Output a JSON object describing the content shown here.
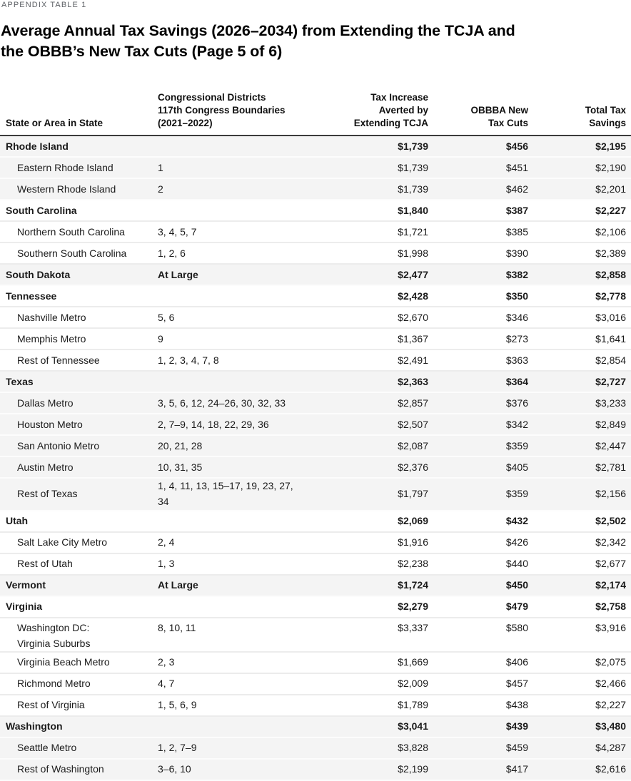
{
  "eyebrow": "APPENDIX TABLE 1",
  "title_line1": "Average Annual Tax Savings (2026–2034) from Extending the TCJA and",
  "title_line2": "the OBBB’s New Tax Cuts (Page 5 of 6)",
  "columns": [
    "State or Area in State",
    "Congressional Districts\n117th Congress Boundaries\n(2021–2022)",
    "Tax Increase\nAverted by\nExtending TCJA",
    "OBBBA New\nTax Cuts",
    "Total Tax\nSavings"
  ],
  "rows": [
    {
      "label": "Rhode Island",
      "districts": "",
      "tcja": "$1,739",
      "obbba": "$456",
      "total": "$2,195",
      "bold": true,
      "area": false,
      "shade": "g",
      "tall": false
    },
    {
      "label": "Eastern Rhode Island",
      "districts": "1",
      "tcja": "$1,739",
      "obbba": "$451",
      "total": "$2,190",
      "bold": false,
      "area": true,
      "shade": "g",
      "tall": false
    },
    {
      "label": "Western Rhode Island",
      "districts": "2",
      "tcja": "$1,739",
      "obbba": "$462",
      "total": "$2,201",
      "bold": false,
      "area": true,
      "shade": "g",
      "tall": false
    },
    {
      "label": "South Carolina",
      "districts": "",
      "tcja": "$1,840",
      "obbba": "$387",
      "total": "$2,227",
      "bold": true,
      "area": false,
      "shade": "w",
      "tall": false
    },
    {
      "label": "Northern South Carolina",
      "districts": "3, 4, 5, 7",
      "tcja": "$1,721",
      "obbba": "$385",
      "total": "$2,106",
      "bold": false,
      "area": true,
      "shade": "w",
      "tall": false
    },
    {
      "label": "Southern South Carolina",
      "districts": "1, 2, 6",
      "tcja": "$1,998",
      "obbba": "$390",
      "total": "$2,389",
      "bold": false,
      "area": true,
      "shade": "w",
      "tall": false
    },
    {
      "label": "South Dakota",
      "districts": "At Large",
      "tcja": "$2,477",
      "obbba": "$382",
      "total": "$2,858",
      "bold": true,
      "area": false,
      "shade": "g",
      "tall": false
    },
    {
      "label": "Tennessee",
      "districts": "",
      "tcja": "$2,428",
      "obbba": "$350",
      "total": "$2,778",
      "bold": true,
      "area": false,
      "shade": "w",
      "tall": false
    },
    {
      "label": "Nashville Metro",
      "districts": "5, 6",
      "tcja": "$2,670",
      "obbba": "$346",
      "total": "$3,016",
      "bold": false,
      "area": true,
      "shade": "w",
      "tall": false
    },
    {
      "label": "Memphis Metro",
      "districts": "9",
      "tcja": "$1,367",
      "obbba": "$273",
      "total": "$1,641",
      "bold": false,
      "area": true,
      "shade": "w",
      "tall": false
    },
    {
      "label": "Rest of Tennessee",
      "districts": "1, 2, 3, 4, 7, 8",
      "tcja": "$2,491",
      "obbba": "$363",
      "total": "$2,854",
      "bold": false,
      "area": true,
      "shade": "w",
      "tall": false
    },
    {
      "label": "Texas",
      "districts": "",
      "tcja": "$2,363",
      "obbba": "$364",
      "total": "$2,727",
      "bold": true,
      "area": false,
      "shade": "g",
      "tall": false
    },
    {
      "label": "Dallas Metro",
      "districts": "3, 5, 6, 12, 24–26, 30, 32, 33",
      "tcja": "$2,857",
      "obbba": "$376",
      "total": "$3,233",
      "bold": false,
      "area": true,
      "shade": "g",
      "tall": false
    },
    {
      "label": "Houston Metro",
      "districts": "2, 7–9, 14, 18, 22, 29, 36",
      "tcja": "$2,507",
      "obbba": "$342",
      "total": "$2,849",
      "bold": false,
      "area": true,
      "shade": "g",
      "tall": false
    },
    {
      "label": "San Antonio Metro",
      "districts": "20, 21, 28",
      "tcja": "$2,087",
      "obbba": "$359",
      "total": "$2,447",
      "bold": false,
      "area": true,
      "shade": "g",
      "tall": false
    },
    {
      "label": "Austin Metro",
      "districts": "10, 31, 35",
      "tcja": "$2,376",
      "obbba": "$405",
      "total": "$2,781",
      "bold": false,
      "area": true,
      "shade": "g",
      "tall": false
    },
    {
      "label": "Rest of Texas",
      "districts": "1, 4, 11, 13, 15–17, 19, 23, 27, 34",
      "tcja": "$1,797",
      "obbba": "$359",
      "total": "$2,156",
      "bold": false,
      "area": true,
      "shade": "g",
      "tall": false
    },
    {
      "label": "Utah",
      "districts": "",
      "tcja": "$2,069",
      "obbba": "$432",
      "total": "$2,502",
      "bold": true,
      "area": false,
      "shade": "w",
      "tall": false
    },
    {
      "label": "Salt Lake City Metro",
      "districts": "2, 4",
      "tcja": "$1,916",
      "obbba": "$426",
      "total": "$2,342",
      "bold": false,
      "area": true,
      "shade": "w",
      "tall": false
    },
    {
      "label": "Rest of Utah",
      "districts": "1, 3",
      "tcja": "$2,238",
      "obbba": "$440",
      "total": "$2,677",
      "bold": false,
      "area": true,
      "shade": "w",
      "tall": false
    },
    {
      "label": "Vermont",
      "districts": "At Large",
      "tcja": "$1,724",
      "obbba": "$450",
      "total": "$2,174",
      "bold": true,
      "area": false,
      "shade": "g",
      "tall": false
    },
    {
      "label": "Virginia",
      "districts": "",
      "tcja": "$2,279",
      "obbba": "$479",
      "total": "$2,758",
      "bold": true,
      "area": false,
      "shade": "w",
      "tall": false
    },
    {
      "label": "Washington DC:\nVirginia Suburbs",
      "districts": "8, 10, 11",
      "tcja": "$3,337",
      "obbba": "$580",
      "total": "$3,916",
      "bold": false,
      "area": true,
      "shade": "w",
      "tall": true
    },
    {
      "label": "Virginia Beach Metro",
      "districts": "2, 3",
      "tcja": "$1,669",
      "obbba": "$406",
      "total": "$2,075",
      "bold": false,
      "area": true,
      "shade": "w",
      "tall": false
    },
    {
      "label": "Richmond Metro",
      "districts": "4, 7",
      "tcja": "$2,009",
      "obbba": "$457",
      "total": "$2,466",
      "bold": false,
      "area": true,
      "shade": "w",
      "tall": false
    },
    {
      "label": "Rest of Virginia",
      "districts": "1, 5, 6, 9",
      "tcja": "$1,789",
      "obbba": "$438",
      "total": "$2,227",
      "bold": false,
      "area": true,
      "shade": "w",
      "tall": false
    },
    {
      "label": "Washington",
      "districts": "",
      "tcja": "$3,041",
      "obbba": "$439",
      "total": "$3,480",
      "bold": true,
      "area": false,
      "shade": "g",
      "tall": false
    },
    {
      "label": "Seattle Metro",
      "districts": "1, 2, 7–9",
      "tcja": "$3,828",
      "obbba": "$459",
      "total": "$4,287",
      "bold": false,
      "area": true,
      "shade": "g",
      "tall": false
    },
    {
      "label": "Rest of Washington",
      "districts": "3–6, 10",
      "tcja": "$2,199",
      "obbba": "$417",
      "total": "$2,616",
      "bold": false,
      "area": true,
      "shade": "g",
      "tall": false
    }
  ]
}
